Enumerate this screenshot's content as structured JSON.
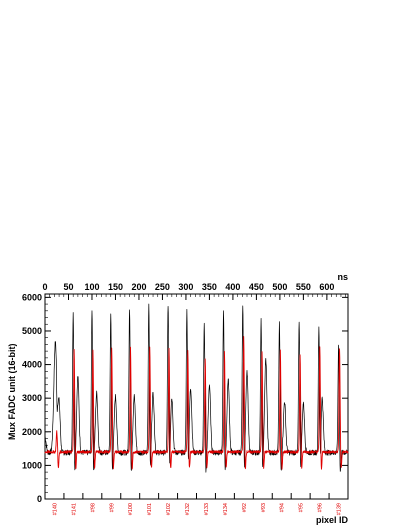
{
  "chart_data": {
    "type": "line",
    "title": "",
    "ylabel": "Mux FADC unit (16-bit)",
    "xlabel_bottom": "pixel ID",
    "xlabel_top": "ns",
    "ylim": [
      0,
      6100
    ],
    "xlim_ns": [
      0,
      645
    ],
    "y_ticks": [
      0,
      1000,
      2000,
      3000,
      4000,
      5000,
      6000
    ],
    "top_x_ticks": [
      0,
      50,
      100,
      150,
      200,
      250,
      300,
      350,
      400,
      450,
      500,
      550,
      600
    ],
    "grid": false,
    "legend": "none",
    "pixel_ids": [
      "#140",
      "#141",
      "#98",
      "#99",
      "#100",
      "#101",
      "#102",
      "#132",
      "#133",
      "#134",
      "#92",
      "#93",
      "#94",
      "#95",
      "#96",
      "#139"
    ],
    "series": [
      {
        "color": "#000000",
        "baseline": 1380,
        "pulses": [
          {
            "x_ns": 22,
            "peak": 4650,
            "width": "broad"
          },
          {
            "x_ns": 60,
            "peak": 5550,
            "width": "narrow"
          },
          {
            "x_ns": 100,
            "peak": 5650,
            "width": "narrow"
          },
          {
            "x_ns": 140,
            "peak": 5500,
            "width": "narrow"
          },
          {
            "x_ns": 180,
            "peak": 5700,
            "width": "narrow"
          },
          {
            "x_ns": 221,
            "peak": 5800,
            "width": "narrow"
          },
          {
            "x_ns": 262,
            "peak": 5800,
            "width": "narrow"
          },
          {
            "x_ns": 302,
            "peak": 5600,
            "width": "narrow"
          },
          {
            "x_ns": 339,
            "peak": 5200,
            "width": "narrow"
          },
          {
            "x_ns": 380,
            "peak": 5600,
            "width": "narrow"
          },
          {
            "x_ns": 421,
            "peak": 5800,
            "width": "narrow"
          },
          {
            "x_ns": 460,
            "peak": 5300,
            "width": "narrow"
          },
          {
            "x_ns": 499,
            "peak": 5200,
            "width": "narrow"
          },
          {
            "x_ns": 541,
            "peak": 5300,
            "width": "narrow"
          },
          {
            "x_ns": 583,
            "peak": 5100,
            "width": "narrow"
          },
          {
            "x_ns": 625,
            "peak": 4600,
            "width": "narrow"
          }
        ],
        "tails": [
          {
            "x_ns": 0,
            "peak": 1850
          },
          {
            "x_ns": 30,
            "peak": 2800
          },
          {
            "x_ns": 70,
            "peak": 3650
          },
          {
            "x_ns": 110,
            "peak": 3150
          },
          {
            "x_ns": 150,
            "peak": 3050
          },
          {
            "x_ns": 190,
            "peak": 3050
          },
          {
            "x_ns": 230,
            "peak": 3150
          },
          {
            "x_ns": 270,
            "peak": 3000
          },
          {
            "x_ns": 310,
            "peak": 3300
          },
          {
            "x_ns": 350,
            "peak": 3400
          },
          {
            "x_ns": 390,
            "peak": 3550
          },
          {
            "x_ns": 430,
            "peak": 3750
          },
          {
            "x_ns": 470,
            "peak": 4150
          },
          {
            "x_ns": 510,
            "peak": 2900
          },
          {
            "x_ns": 550,
            "peak": 2850
          },
          {
            "x_ns": 590,
            "peak": 3000
          }
        ]
      },
      {
        "color": "#e00000",
        "baseline": 1400,
        "pulses": [
          {
            "x_ns": 25,
            "peak": 2000
          },
          {
            "x_ns": 62,
            "peak": 4450
          },
          {
            "x_ns": 102,
            "peak": 4400
          },
          {
            "x_ns": 142,
            "peak": 4500
          },
          {
            "x_ns": 182,
            "peak": 4500
          },
          {
            "x_ns": 223,
            "peak": 4550
          },
          {
            "x_ns": 264,
            "peak": 4500
          },
          {
            "x_ns": 304,
            "peak": 4450
          },
          {
            "x_ns": 341,
            "peak": 4200
          },
          {
            "x_ns": 382,
            "peak": 4400
          },
          {
            "x_ns": 423,
            "peak": 4800
          },
          {
            "x_ns": 462,
            "peak": 4400
          },
          {
            "x_ns": 501,
            "peak": 4400
          },
          {
            "x_ns": 543,
            "peak": 4300
          },
          {
            "x_ns": 585,
            "peak": 4500
          },
          {
            "x_ns": 627,
            "peak": 4500
          }
        ]
      }
    ]
  }
}
